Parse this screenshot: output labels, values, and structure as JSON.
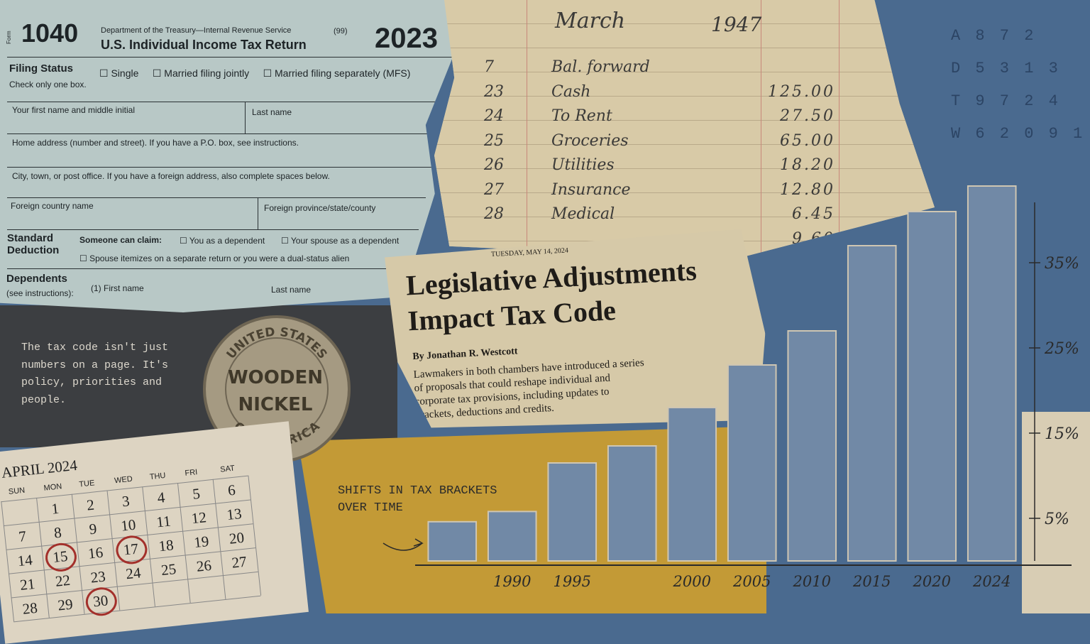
{
  "form": {
    "form_label": "Form",
    "number": "1040",
    "dept": "Department of the Treasury—Internal Revenue Service",
    "code": "(99)",
    "title": "U.S. Individual Income Tax Return",
    "year": "2023",
    "filing_status": "Filing Status",
    "check_one": "Check only one box.",
    "options": [
      "Single",
      "Married filing jointly",
      "Married filing separately (MFS)"
    ],
    "fields": [
      "Your first name and middle initial",
      "Last name",
      "Home address (number and street). If you have a P.O. box, see instructions.",
      "City, town, or post office. If you have a foreign address, also complete spaces below.",
      "Foreign country name",
      "Foreign province/state/county"
    ],
    "standard_deduction": "Standard Deduction",
    "someone_can_claim": "Someone can claim:",
    "claim_options": [
      "You as a dependent",
      "Your spouse as a dependent"
    ],
    "spouse_itemizes": "Spouse itemizes on a separate return or you were a dual-status alien",
    "dependents": "Dependents",
    "see_instructions": "(see instructions):",
    "dep_fields": [
      "(1) First name",
      "Last name"
    ]
  },
  "ledger": {
    "month": "March",
    "year": "1947",
    "rows": [
      {
        "day": "7",
        "item": "Bal. forward"
      },
      {
        "day": "23",
        "item": "Cash",
        "amount": "125.00"
      },
      {
        "day": "24",
        "item": "To Rent",
        "amount": "27.50"
      },
      {
        "day": "25",
        "item": "Groceries",
        "amount": "65.00"
      },
      {
        "day": "26",
        "item": "Utilities",
        "amount": "18.20"
      },
      {
        "day": "27",
        "item": "Insurance",
        "amount": "12.80"
      },
      {
        "day": "28",
        "item": "Medical",
        "amount": "6.45"
      },
      {
        "amount": "9.60"
      }
    ]
  },
  "typed_codes": [
    "A 8 7 2",
    "D 5 3 1 3",
    "T 9 7 2 4",
    "W 6 2 0 9 1"
  ],
  "news": {
    "date": "TUESDAY, MAY 14, 2024",
    "headline": "Legislative Adjustments Impact Tax Code",
    "byline": "By Jonathan R. Westcott",
    "body": "Lawmakers in both chambers have introduced a series of proposals that could reshape individual and corporate tax provisions, including updates to brackets, deductions and credits."
  },
  "quote": "The tax code isn't just numbers on a page. It's policy, priorities and people.",
  "nickel": {
    "top": "UNITED STATES",
    "middle": [
      "WOODEN",
      "NICKEL"
    ],
    "bottom": "OF AMERICA"
  },
  "calendar": {
    "title": "APRIL 2024",
    "weekdays": [
      "SUN",
      "MON",
      "TUE",
      "WED",
      "THU",
      "FRI",
      "SAT"
    ],
    "days": [
      1,
      2,
      3,
      4,
      5,
      6,
      7,
      8,
      9,
      10,
      11,
      12,
      13,
      14,
      15,
      16,
      17,
      18,
      19,
      20,
      21,
      22,
      23,
      24,
      25,
      26,
      27,
      28,
      29,
      30
    ],
    "circled": [
      15,
      17,
      30
    ]
  },
  "chart_data": {
    "type": "bar",
    "title": "SHIFTS IN TAX BRACKETS OVER TIME",
    "categories": [
      null,
      "1990",
      "1995",
      null,
      "2000",
      "2005",
      "2010",
      "2015",
      "2020",
      "2024"
    ],
    "values": [
      4.6,
      5.8,
      11.5,
      13.5,
      18,
      23,
      27,
      37,
      41,
      44
    ],
    "color": "#7189a6",
    "ylim": [
      0,
      45
    ],
    "yticks": [
      {
        "value": 5,
        "label": "5%"
      },
      {
        "value": 15,
        "label": "15%"
      },
      {
        "value": 25,
        "label": "25%"
      },
      {
        "value": 35,
        "label": "35%"
      }
    ]
  }
}
